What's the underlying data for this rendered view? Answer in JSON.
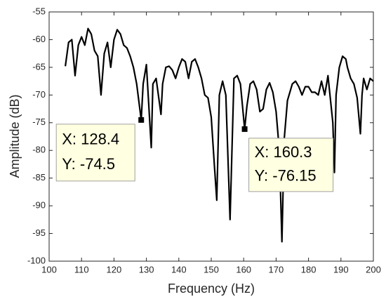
{
  "chart_data": {
    "type": "line",
    "xlabel": "Frequency (Hz)",
    "ylabel": "Amplitude (dB)",
    "xlim": [
      100,
      200
    ],
    "ylim": [
      -100,
      -55
    ],
    "xticks": [
      100,
      110,
      120,
      130,
      140,
      150,
      160,
      170,
      180,
      190,
      200
    ],
    "yticks": [
      -100,
      -95,
      -90,
      -85,
      -80,
      -75,
      -70,
      -65,
      -60,
      -55
    ],
    "series": [
      {
        "color": "#000000",
        "x": [
          105,
          106,
          107,
          108,
          109,
          110,
          111,
          112,
          113,
          114,
          115,
          116,
          117,
          118,
          119,
          120,
          121,
          122,
          123,
          124,
          125,
          126,
          127,
          128.4,
          129,
          130,
          131.5,
          132,
          133,
          134.5,
          135,
          136,
          137,
          138,
          139,
          140,
          141,
          142,
          143,
          144,
          145,
          146,
          147,
          148,
          149,
          150,
          151,
          151.7,
          152.5,
          153.5,
          154.5,
          155.8,
          157,
          158,
          159,
          160.3,
          161,
          162,
          163,
          164,
          165,
          166,
          167,
          168,
          169,
          170,
          171,
          171.8,
          172.5,
          173.5,
          175,
          176,
          177,
          178,
          179,
          180,
          181,
          182,
          183,
          184,
          185,
          186,
          187.5,
          188,
          188.5,
          189.5,
          190.5,
          191.5,
          192,
          193,
          194,
          195,
          196,
          196.5,
          197,
          198,
          199,
          200
        ],
        "values": [
          -64.8,
          -60.5,
          -60,
          -66.5,
          -61,
          -59.5,
          -61,
          -58,
          -59,
          -62,
          -63,
          -70,
          -62.5,
          -60.5,
          -65,
          -60,
          -58.2,
          -59,
          -61,
          -61.5,
          -63,
          -65,
          -68,
          -74.5,
          -68,
          -64.5,
          -79.5,
          -68,
          -67,
          -73.5,
          -68,
          -65,
          -64.8,
          -65.5,
          -67,
          -65,
          -63.5,
          -64,
          -67,
          -64,
          -63.5,
          -65,
          -67,
          -70,
          -70.5,
          -74,
          -83,
          -89,
          -70,
          -67.5,
          -70,
          -92.5,
          -67,
          -66.5,
          -68,
          -76.15,
          -72,
          -68,
          -67.5,
          -69,
          -73,
          -72.5,
          -69,
          -67.8,
          -69.5,
          -73,
          -80,
          -96.5,
          -78,
          -71,
          -68,
          -67.5,
          -68.5,
          -70,
          -68.5,
          -68.5,
          -69.5,
          -69.5,
          -70,
          -67.5,
          -70,
          -66.5,
          -75,
          -84,
          -70,
          -65,
          -63,
          -63.5,
          -65,
          -67,
          -68,
          -70.5,
          -77,
          -70,
          -67,
          -69,
          -67,
          -67.5
        ]
      }
    ],
    "annotations": [
      {
        "x": 128.4,
        "y": -74.5,
        "label_x": "X: 128.4",
        "label_y": "Y: -74.5"
      },
      {
        "x": 160.3,
        "y": -76.15,
        "label_x": "X: 160.3",
        "label_y": "Y: -76.15"
      }
    ]
  }
}
